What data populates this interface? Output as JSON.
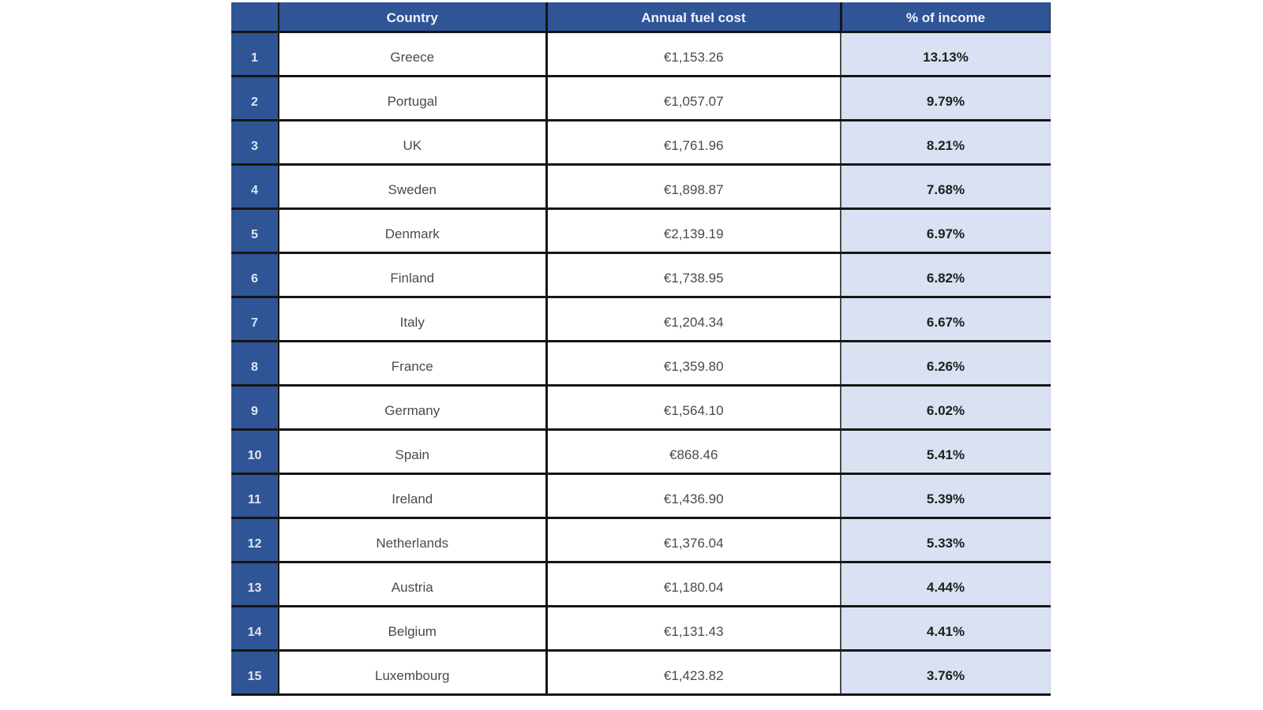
{
  "table": {
    "header": {
      "rank": "",
      "country": "Country",
      "fuel_cost": "Annual fuel cost",
      "income_pct": "% of income"
    },
    "rows": [
      {
        "rank": "1",
        "country": "Greece",
        "fuel_cost": "€1,153.26",
        "income_pct": "13.13%"
      },
      {
        "rank": "2",
        "country": "Portugal",
        "fuel_cost": "€1,057.07",
        "income_pct": "9.79%"
      },
      {
        "rank": "3",
        "country": "UK",
        "fuel_cost": "€1,761.96",
        "income_pct": "8.21%"
      },
      {
        "rank": "4",
        "country": "Sweden",
        "fuel_cost": "€1,898.87",
        "income_pct": "7.68%"
      },
      {
        "rank": "5",
        "country": "Denmark",
        "fuel_cost": "€2,139.19",
        "income_pct": "6.97%"
      },
      {
        "rank": "6",
        "country": "Finland",
        "fuel_cost": "€1,738.95",
        "income_pct": "6.82%"
      },
      {
        "rank": "7",
        "country": "Italy",
        "fuel_cost": "€1,204.34",
        "income_pct": "6.67%"
      },
      {
        "rank": "8",
        "country": "France",
        "fuel_cost": "€1,359.80",
        "income_pct": "6.26%"
      },
      {
        "rank": "9",
        "country": "Germany",
        "fuel_cost": "€1,564.10",
        "income_pct": "6.02%"
      },
      {
        "rank": "10",
        "country": "Spain",
        "fuel_cost": "€868.46",
        "income_pct": "5.41%"
      },
      {
        "rank": "11",
        "country": "Ireland",
        "fuel_cost": "€1,436.90",
        "income_pct": "5.39%"
      },
      {
        "rank": "12",
        "country": "Netherlands",
        "fuel_cost": "€1,376.04",
        "income_pct": "5.33%"
      },
      {
        "rank": "13",
        "country": "Austria",
        "fuel_cost": "€1,180.04",
        "income_pct": "4.44%"
      },
      {
        "rank": "14",
        "country": "Belgium",
        "fuel_cost": "€1,131.43",
        "income_pct": "4.41%"
      },
      {
        "rank": "15",
        "country": "Luxembourg",
        "fuel_cost": "€1,423.82",
        "income_pct": "3.76%"
      }
    ]
  },
  "colors": {
    "header_bg": "#2F5597",
    "header_text": "#F2F4FA",
    "header_edge": "#17295C",
    "rank_text": "#DEE4F0",
    "body_text": "#4A4A4A",
    "pct_bg": "#D9E1F2",
    "pct_text": "#1F1F1F",
    "pct_edge": "#C3CDE2",
    "border_dark": "#161616",
    "border_mid": "#4D4D4D"
  }
}
